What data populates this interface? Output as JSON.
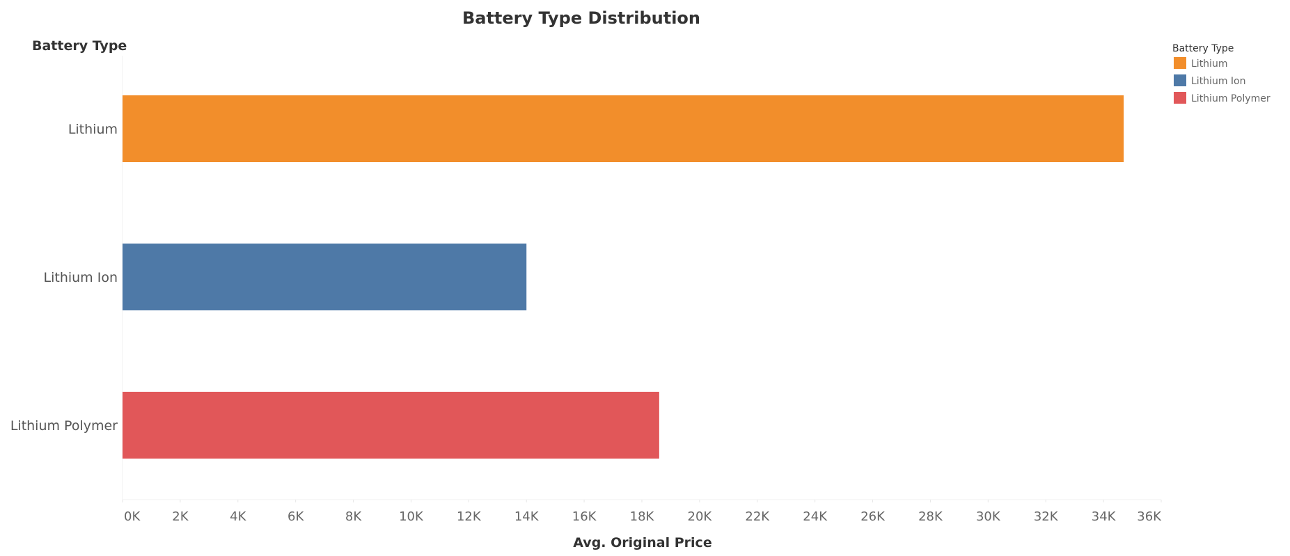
{
  "chart_data": {
    "type": "bar",
    "orientation": "horizontal",
    "title": "Battery Type Distribution",
    "xlabel": "Avg. Original Price",
    "ylabel": "Battery Type",
    "categories": [
      "Lithium",
      "Lithium Ion",
      "Lithium Polymer"
    ],
    "values": [
      34700,
      14000,
      18600
    ],
    "colors": [
      "#f28e2b",
      "#4e79a7",
      "#e15759"
    ],
    "xlim": [
      0,
      36000
    ],
    "ticks": [
      0,
      2000,
      4000,
      6000,
      8000,
      10000,
      12000,
      14000,
      16000,
      18000,
      20000,
      22000,
      24000,
      26000,
      28000,
      30000,
      32000,
      34000,
      36000
    ],
    "tick_labels": [
      "0K",
      "2K",
      "4K",
      "6K",
      "8K",
      "10K",
      "12K",
      "14K",
      "16K",
      "18K",
      "20K",
      "22K",
      "24K",
      "26K",
      "28K",
      "30K",
      "32K",
      "34K",
      "36K"
    ],
    "grid": false,
    "legend": {
      "title": "Battery Type",
      "placement": "top-right",
      "items": [
        "Lithium",
        "Lithium Ion",
        "Lithium Polymer"
      ]
    }
  }
}
